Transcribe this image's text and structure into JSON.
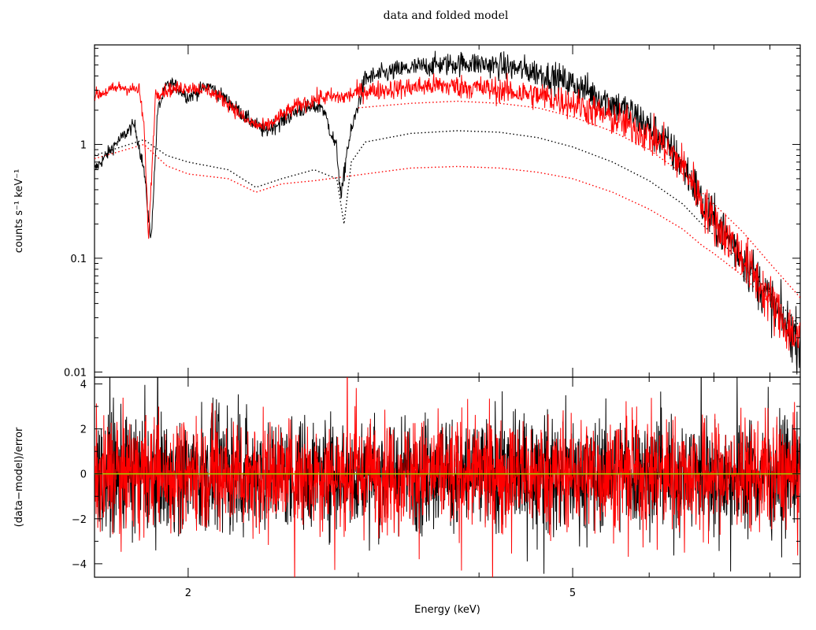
{
  "chart_data": {
    "title": "data and folded model",
    "xlabel": "Energy (keV)",
    "x_scale": "log",
    "xlim": [
      1.6,
      8.6
    ],
    "x_ticks": [
      {
        "value": 2,
        "label": "2"
      },
      {
        "value": 5,
        "label": "5"
      }
    ],
    "colors": {
      "data1": "#000000",
      "data2": "#ff0000",
      "zero_line": "#a0c800"
    },
    "panels": [
      {
        "name": "spectrum",
        "type": "line",
        "ylabel": "counts s⁻¹ keV⁻¹",
        "y_scale": "log",
        "ylim": [
          0.009,
          7.5
        ],
        "y_ticks": [
          {
            "value": 0.01,
            "label": "0.01"
          },
          {
            "value": 0.1,
            "label": "0.1"
          },
          {
            "value": 1,
            "label": "1"
          }
        ],
        "series": [
          {
            "color": "#000000",
            "style": "data",
            "points": [
              [
                1.6,
                0.6
              ],
              [
                1.68,
                1.0
              ],
              [
                1.76,
                1.5
              ],
              [
                1.8,
                0.6
              ],
              [
                1.83,
                0.14
              ],
              [
                1.86,
                2.0
              ],
              [
                1.9,
                3.3
              ],
              [
                1.93,
                3.4
              ],
              [
                2.0,
                2.6
              ],
              [
                2.1,
                3.3
              ],
              [
                2.2,
                2.4
              ],
              [
                2.3,
                1.7
              ],
              [
                2.4,
                1.3
              ],
              [
                2.5,
                1.6
              ],
              [
                2.6,
                2.0
              ],
              [
                2.75,
                2.2
              ],
              [
                2.85,
                0.9
              ],
              [
                2.88,
                0.33
              ],
              [
                2.92,
                0.9
              ],
              [
                3.0,
                2.3
              ],
              [
                3.05,
                3.8
              ],
              [
                3.3,
                4.5
              ],
              [
                3.6,
                5.0
              ],
              [
                3.9,
                5.2
              ],
              [
                4.2,
                4.9
              ],
              [
                4.6,
                4.3
              ],
              [
                5.0,
                3.4
              ],
              [
                5.4,
                2.5
              ],
              [
                5.8,
                1.8
              ],
              [
                6.2,
                1.1
              ],
              [
                6.5,
                0.65
              ],
              [
                6.7,
                0.42
              ],
              [
                6.8,
                0.3
              ],
              [
                7.0,
                0.21
              ],
              [
                7.4,
                0.12
              ],
              [
                7.8,
                0.06
              ],
              [
                8.2,
                0.03
              ],
              [
                8.6,
                0.018
              ]
            ]
          },
          {
            "color": "#ff0000",
            "style": "data",
            "points": [
              [
                1.6,
                2.7
              ],
              [
                1.7,
                3.2
              ],
              [
                1.78,
                3.0
              ],
              [
                1.8,
                1.5
              ],
              [
                1.82,
                0.15
              ],
              [
                1.85,
                2.8
              ],
              [
                1.9,
                3.0
              ],
              [
                2.0,
                3.2
              ],
              [
                2.1,
                3.0
              ],
              [
                2.2,
                2.3
              ],
              [
                2.3,
                1.6
              ],
              [
                2.4,
                1.4
              ],
              [
                2.5,
                1.8
              ],
              [
                2.6,
                2.2
              ],
              [
                2.75,
                2.6
              ],
              [
                2.9,
                2.6
              ],
              [
                3.0,
                2.9
              ],
              [
                3.3,
                3.1
              ],
              [
                3.6,
                3.3
              ],
              [
                3.9,
                3.2
              ],
              [
                4.2,
                3.0
              ],
              [
                4.6,
                2.7
              ],
              [
                5.0,
                2.3
              ],
              [
                5.4,
                1.8
              ],
              [
                5.8,
                1.4
              ],
              [
                6.2,
                1.0
              ],
              [
                6.5,
                0.65
              ],
              [
                6.7,
                0.42
              ],
              [
                6.8,
                0.3
              ],
              [
                7.0,
                0.21
              ],
              [
                7.4,
                0.12
              ],
              [
                7.8,
                0.06
              ],
              [
                8.2,
                0.03
              ],
              [
                8.6,
                0.018
              ]
            ]
          },
          {
            "color": "#000000",
            "style": "dotted",
            "points": [
              [
                1.6,
                0.8
              ],
              [
                1.8,
                1.1
              ],
              [
                1.9,
                0.8
              ],
              [
                2.0,
                0.7
              ],
              [
                2.2,
                0.6
              ],
              [
                2.35,
                0.42
              ],
              [
                2.5,
                0.5
              ],
              [
                2.7,
                0.6
              ],
              [
                2.85,
                0.5
              ],
              [
                2.9,
                0.2
              ],
              [
                2.95,
                0.7
              ],
              [
                3.05,
                1.05
              ],
              [
                3.4,
                1.25
              ],
              [
                3.8,
                1.32
              ],
              [
                4.2,
                1.28
              ],
              [
                4.6,
                1.15
              ],
              [
                5.0,
                0.95
              ],
              [
                5.5,
                0.7
              ],
              [
                6.0,
                0.48
              ],
              [
                6.5,
                0.3
              ],
              [
                6.8,
                0.2
              ],
              [
                7.0,
                0.16
              ],
              [
                7.5,
                0.09
              ],
              [
                8.0,
                0.05
              ],
              [
                8.6,
                0.025
              ]
            ]
          },
          {
            "color": "#ff0000",
            "style": "dotted",
            "points": [
              [
                1.6,
                0.75
              ],
              [
                1.8,
                1.0
              ],
              [
                1.9,
                0.65
              ],
              [
                2.0,
                0.55
              ],
              [
                2.2,
                0.5
              ],
              [
                2.35,
                0.38
              ],
              [
                2.5,
                0.45
              ],
              [
                2.7,
                0.48
              ],
              [
                2.9,
                0.52
              ],
              [
                3.1,
                0.56
              ],
              [
                3.4,
                0.62
              ],
              [
                3.8,
                0.64
              ],
              [
                4.2,
                0.62
              ],
              [
                4.6,
                0.57
              ],
              [
                5.0,
                0.5
              ],
              [
                5.5,
                0.38
              ],
              [
                6.0,
                0.27
              ],
              [
                6.5,
                0.18
              ],
              [
                6.8,
                0.13
              ],
              [
                7.0,
                0.11
              ],
              [
                7.5,
                0.07
              ],
              [
                8.0,
                0.04
              ],
              [
                8.6,
                0.02
              ]
            ]
          },
          {
            "color": "#ff0000",
            "style": "dotted",
            "points": [
              [
                3.0,
                2.1
              ],
              [
                3.4,
                2.3
              ],
              [
                3.8,
                2.4
              ],
              [
                4.2,
                2.3
              ],
              [
                4.6,
                2.1
              ],
              [
                5.0,
                1.75
              ],
              [
                5.5,
                1.3
              ],
              [
                6.0,
                0.9
              ],
              [
                6.5,
                0.55
              ],
              [
                6.8,
                0.38
              ],
              [
                7.0,
                0.3
              ],
              [
                7.5,
                0.17
              ],
              [
                8.0,
                0.09
              ],
              [
                8.6,
                0.045
              ]
            ]
          }
        ]
      },
      {
        "name": "residuals",
        "type": "line",
        "ylabel": "(data−model)/error",
        "y_scale": "linear",
        "ylim": [
          -4.6,
          4.3
        ],
        "y_ticks": [
          {
            "value": -4,
            "label": "−4"
          },
          {
            "value": -2,
            "label": "−2"
          },
          {
            "value": 0,
            "label": "0"
          },
          {
            "value": 2,
            "label": "2"
          },
          {
            "value": 4,
            "label": "4"
          }
        ],
        "zero_line": 0,
        "series": [
          {
            "color": "#000000",
            "style": "data",
            "spread": 1.25
          },
          {
            "color": "#ff0000",
            "style": "data",
            "spread": 1.2
          }
        ]
      }
    ]
  }
}
